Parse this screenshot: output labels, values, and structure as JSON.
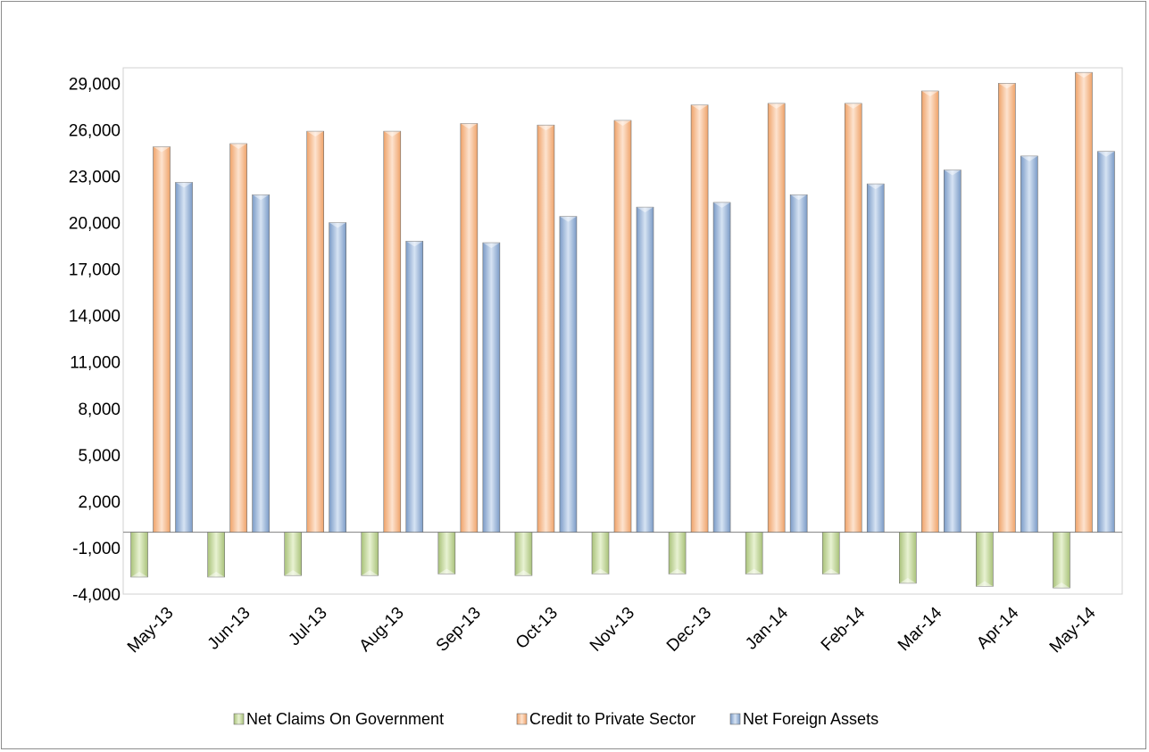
{
  "chart_data": {
    "type": "bar",
    "title": "",
    "xlabel": "",
    "ylabel": "",
    "categories": [
      "May-13",
      "Jun-13",
      "Jul-13",
      "Aug-13",
      "Sep-13",
      "Oct-13",
      "Nov-13",
      "Dec-13",
      "Jan-14",
      "Feb-14",
      "Mar-14",
      "Apr-14",
      "May-14"
    ],
    "ylim": [
      -4000,
      30000
    ],
    "y_ticks": [
      -4000,
      -1000,
      2000,
      5000,
      8000,
      11000,
      14000,
      17000,
      20000,
      23000,
      26000,
      29000
    ],
    "y_tick_labels": [
      "-4,000",
      "-1,000",
      "2,000",
      "5,000",
      "8,000",
      "11,000",
      "14,000",
      "17,000",
      "20,000",
      "23,000",
      "26,000",
      "29,000"
    ],
    "grid": false,
    "legend_position": "bottom",
    "series": [
      {
        "name": "Net Claims On Government",
        "color": "#c4d79b",
        "values": [
          -2900,
          -2900,
          -2800,
          -2800,
          -2700,
          -2800,
          -2700,
          -2700,
          -2700,
          -2700,
          -3300,
          -3500,
          -3600
        ]
      },
      {
        "name": "Credit to Private Sector",
        "color": "#fac090",
        "values": [
          24900,
          25100,
          25900,
          25900,
          26400,
          26300,
          26600,
          27600,
          27700,
          27700,
          28500,
          29000,
          29700
        ]
      },
      {
        "name": "Net Foreign Assets",
        "color": "#95b3d7",
        "values": [
          22600,
          21800,
          20000,
          18800,
          18700,
          20400,
          21000,
          21300,
          21800,
          22500,
          23400,
          24300,
          24600
        ]
      }
    ]
  }
}
